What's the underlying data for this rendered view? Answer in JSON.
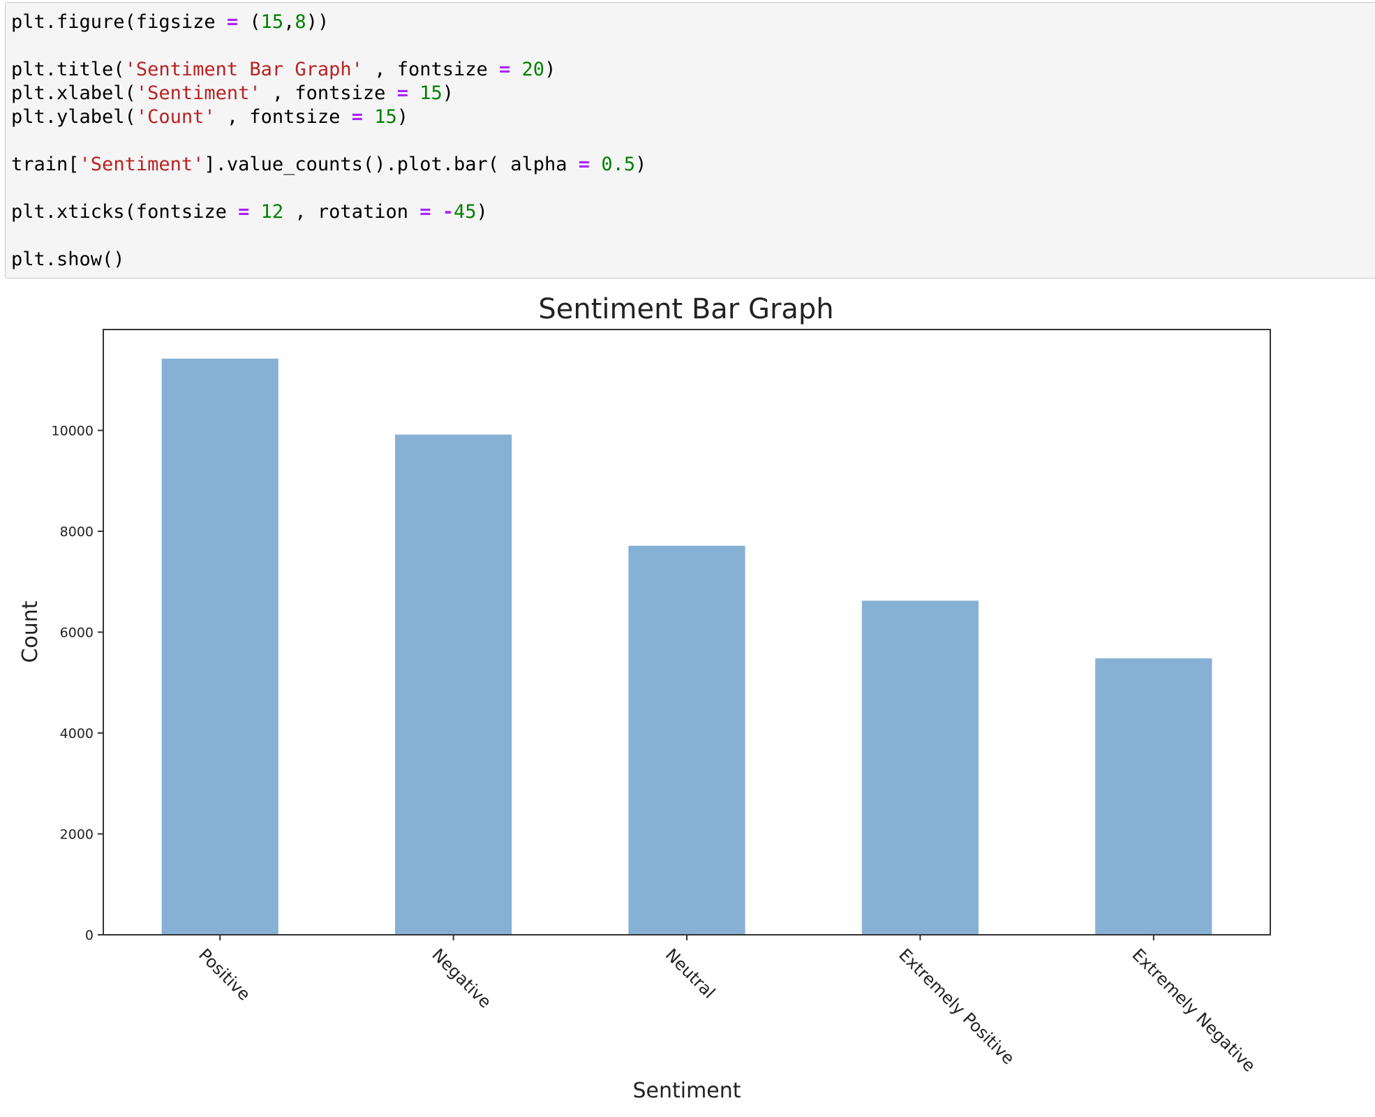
{
  "code_cell": {
    "lines": [
      [
        {
          "t": "plt.figure(figsize "
        },
        {
          "t": "=",
          "k": "op"
        },
        {
          "t": " ("
        },
        {
          "t": "15",
          "k": "num"
        },
        {
          "t": ","
        },
        {
          "t": "8",
          "k": "num"
        },
        {
          "t": "))"
        }
      ],
      [],
      [
        {
          "t": "plt.title("
        },
        {
          "t": "'Sentiment Bar Graph'",
          "k": "str"
        },
        {
          "t": " , fontsize "
        },
        {
          "t": "=",
          "k": "op"
        },
        {
          "t": " "
        },
        {
          "t": "20",
          "k": "num"
        },
        {
          "t": ")"
        }
      ],
      [
        {
          "t": "plt.xlabel("
        },
        {
          "t": "'Sentiment'",
          "k": "str"
        },
        {
          "t": " , fontsize "
        },
        {
          "t": "=",
          "k": "op"
        },
        {
          "t": " "
        },
        {
          "t": "15",
          "k": "num"
        },
        {
          "t": ")"
        }
      ],
      [
        {
          "t": "plt.ylabel("
        },
        {
          "t": "'Count'",
          "k": "str"
        },
        {
          "t": " , fontsize "
        },
        {
          "t": "=",
          "k": "op"
        },
        {
          "t": " "
        },
        {
          "t": "15",
          "k": "num"
        },
        {
          "t": ")"
        }
      ],
      [],
      [
        {
          "t": "train["
        },
        {
          "t": "'Sentiment'",
          "k": "str"
        },
        {
          "t": "].value_counts().plot.bar( alpha "
        },
        {
          "t": "=",
          "k": "op"
        },
        {
          "t": " "
        },
        {
          "t": "0.5",
          "k": "num"
        },
        {
          "t": ")"
        }
      ],
      [],
      [
        {
          "t": "plt.xticks(fontsize "
        },
        {
          "t": "=",
          "k": "op"
        },
        {
          "t": " "
        },
        {
          "t": "12",
          "k": "num"
        },
        {
          "t": " , rotation "
        },
        {
          "t": "=",
          "k": "op"
        },
        {
          "t": " "
        },
        {
          "t": "-",
          "k": "op"
        },
        {
          "t": "45",
          "k": "num"
        },
        {
          "t": ")"
        }
      ],
      [],
      [
        {
          "t": "plt.show()"
        }
      ]
    ]
  },
  "colors": {
    "bar": "#87b1d4",
    "axes": "#333333",
    "text": "#222222"
  },
  "chart_data": {
    "type": "bar",
    "title": "Sentiment Bar Graph",
    "xlabel": "Sentiment",
    "ylabel": "Count",
    "categories": [
      "Positive",
      "Negative",
      "Neutral",
      "Extremely Positive",
      "Extremely Negative"
    ],
    "values": [
      11422,
      9917,
      7713,
      6624,
      5481
    ],
    "ylim": [
      0,
      12000
    ],
    "yticks": [
      0,
      2000,
      4000,
      6000,
      8000,
      10000
    ],
    "ytick_labels": [
      "0",
      "2000",
      "4000",
      "6000",
      "8000",
      "10000"
    ],
    "xtick_rotation": -45,
    "grid": false,
    "legend": "none"
  }
}
